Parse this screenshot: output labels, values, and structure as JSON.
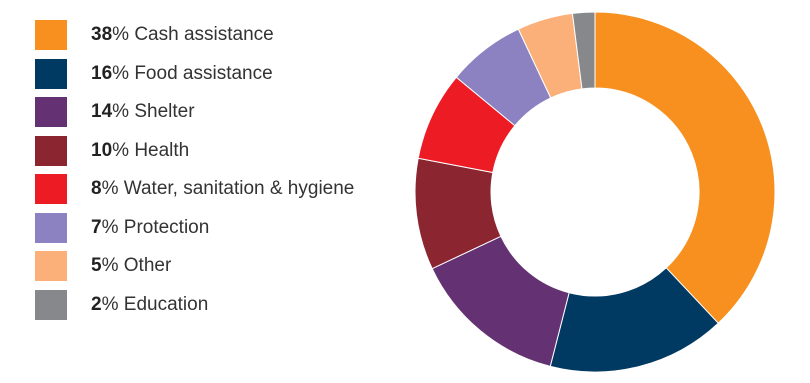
{
  "chart_data": {
    "type": "pie",
    "style": "donut",
    "title": "",
    "legend_placement": "left",
    "slices": [
      {
        "value": 38,
        "pct_label": "38",
        "suffix": "%",
        "name": "Cash assistance",
        "color": "#F7901E"
      },
      {
        "value": 16,
        "pct_label": "16",
        "suffix": "%",
        "name": "Food assistance",
        "color": "#003A63"
      },
      {
        "value": 14,
        "pct_label": "14",
        "suffix": "%",
        "name": "Shelter",
        "color": "#643272"
      },
      {
        "value": 10,
        "pct_label": "10",
        "suffix": "%",
        "name": "Health",
        "color": "#8B2530"
      },
      {
        "value": 8,
        "pct_label": "8",
        "suffix": "%",
        "name": "Water, sanitation & hygiene",
        "color": "#ED1C24"
      },
      {
        "value": 7,
        "pct_label": "7",
        "suffix": "%",
        "name": "Protection",
        "color": "#8C82C1"
      },
      {
        "value": 5,
        "pct_label": "5",
        "suffix": "%",
        "name": "Other",
        "color": "#FBB07A"
      },
      {
        "value": 2,
        "pct_label": "2",
        "suffix": "%",
        "name": "Education",
        "color": "#87888B"
      }
    ]
  }
}
